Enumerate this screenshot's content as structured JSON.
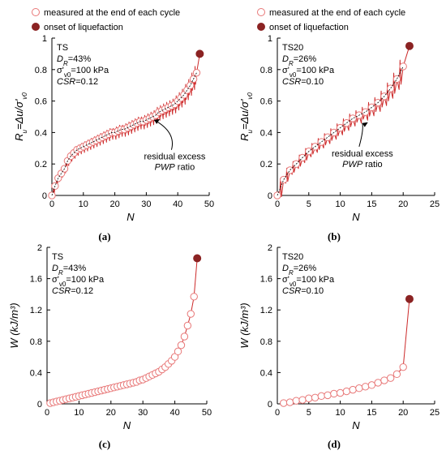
{
  "legend": {
    "measured": "measured at the end of each cycle",
    "onset": "onset of liquefaction",
    "measured_color": "#e87878",
    "onset_color": "#8b2323"
  },
  "chart_data": [
    {
      "id": "a",
      "type": "line",
      "panel_label": "(a)",
      "xlabel": "N",
      "ylabel": "R_u=Δu/σ'_v0",
      "xlim": [
        0,
        50
      ],
      "ylim": [
        0,
        1
      ],
      "xticks": [
        "0",
        "10",
        "20",
        "30",
        "40",
        "50"
      ],
      "yticks": [
        "0",
        "0.2",
        "0.4",
        "0.6",
        "0.8",
        "1"
      ],
      "info": [
        "TS",
        "D_R=43%",
        "σ'_v0=100 kPa",
        "CSR=0.12"
      ],
      "annotation": [
        "residual excess",
        "PWP ratio"
      ],
      "series": [
        {
          "role": "residual",
          "x": [
            0,
            1,
            2,
            3,
            4,
            5,
            6,
            7,
            8,
            9,
            10,
            11,
            12,
            13,
            14,
            15,
            16,
            17,
            18,
            19,
            20,
            21,
            22,
            23,
            24,
            25,
            26,
            27,
            28,
            29,
            30,
            31,
            32,
            33,
            34,
            35,
            36,
            37,
            38,
            39,
            40,
            41,
            42,
            43,
            44,
            45,
            46
          ],
          "y": [
            0.0,
            0.06,
            0.11,
            0.14,
            0.17,
            0.22,
            0.25,
            0.27,
            0.29,
            0.3,
            0.31,
            0.32,
            0.33,
            0.34,
            0.35,
            0.36,
            0.37,
            0.38,
            0.39,
            0.4,
            0.4,
            0.41,
            0.42,
            0.42,
            0.43,
            0.44,
            0.45,
            0.46,
            0.47,
            0.47,
            0.48,
            0.49,
            0.5,
            0.51,
            0.53,
            0.54,
            0.55,
            0.56,
            0.57,
            0.58,
            0.6,
            0.62,
            0.64,
            0.67,
            0.7,
            0.74,
            0.78
          ]
        }
      ],
      "onset": {
        "x": 47,
        "y": 0.9
      }
    },
    {
      "id": "b",
      "type": "line",
      "panel_label": "(b)",
      "xlabel": "N",
      "ylabel": "R_u=Δu/σ'_v0",
      "xlim": [
        0,
        25
      ],
      "ylim": [
        0,
        1
      ],
      "xticks": [
        "0",
        "5",
        "10",
        "15",
        "20",
        "25"
      ],
      "yticks": [
        "0",
        "0.2",
        "0.4",
        "0.6",
        "0.8",
        "1"
      ],
      "info": [
        "TS20",
        "D_R=26%",
        "σ'_v0=100 kPa",
        "CSR=0.10"
      ],
      "annotation": [
        "residual excess",
        "PWP ratio"
      ],
      "series": [
        {
          "role": "residual",
          "x": [
            0,
            1,
            2,
            3,
            4,
            5,
            6,
            7,
            8,
            9,
            10,
            11,
            12,
            13,
            14,
            15,
            16,
            17,
            18,
            19,
            20
          ],
          "y": [
            0.0,
            0.1,
            0.16,
            0.2,
            0.24,
            0.28,
            0.31,
            0.34,
            0.37,
            0.4,
            0.43,
            0.46,
            0.49,
            0.51,
            0.53,
            0.56,
            0.59,
            0.63,
            0.68,
            0.74,
            0.82
          ]
        }
      ],
      "onset": {
        "x": 21,
        "y": 0.95
      }
    },
    {
      "id": "c",
      "type": "line",
      "panel_label": "(c)",
      "xlabel": "N",
      "ylabel": "W (kJ/m³)",
      "xlim": [
        0,
        50
      ],
      "ylim": [
        0,
        2
      ],
      "xticks": [
        "0",
        "10",
        "20",
        "30",
        "40",
        "50"
      ],
      "yticks": [
        "0",
        "0.4",
        "0.8",
        "1.2",
        "1.6",
        "2"
      ],
      "info": [
        "TS",
        "D_R=43%",
        "σ'_v0=100 kPa",
        "CSR=0.12"
      ],
      "series": [
        {
          "role": "cumulative",
          "x": [
            1,
            2,
            3,
            4,
            5,
            6,
            7,
            8,
            9,
            10,
            11,
            12,
            13,
            14,
            15,
            16,
            17,
            18,
            19,
            20,
            21,
            22,
            23,
            24,
            25,
            26,
            27,
            28,
            29,
            30,
            31,
            32,
            33,
            34,
            35,
            36,
            37,
            38,
            39,
            40,
            41,
            42,
            43,
            44,
            45,
            46
          ],
          "y": [
            0.01,
            0.02,
            0.03,
            0.04,
            0.05,
            0.06,
            0.07,
            0.08,
            0.09,
            0.1,
            0.11,
            0.12,
            0.13,
            0.14,
            0.15,
            0.16,
            0.17,
            0.18,
            0.19,
            0.2,
            0.21,
            0.22,
            0.23,
            0.24,
            0.25,
            0.26,
            0.27,
            0.28,
            0.3,
            0.31,
            0.33,
            0.35,
            0.37,
            0.39,
            0.41,
            0.44,
            0.47,
            0.51,
            0.55,
            0.6,
            0.67,
            0.75,
            0.86,
            1.0,
            1.15,
            1.37
          ]
        }
      ],
      "onset": {
        "x": 47,
        "y": 1.86
      }
    },
    {
      "id": "d",
      "type": "line",
      "panel_label": "(d)",
      "xlabel": "N",
      "ylabel": "W (kJ/m³)",
      "xlim": [
        0,
        25
      ],
      "ylim": [
        0,
        2
      ],
      "xticks": [
        "0",
        "5",
        "10",
        "15",
        "20",
        "25"
      ],
      "yticks": [
        "0",
        "0.4",
        "0.8",
        "1.2",
        "1.6",
        "2"
      ],
      "info": [
        "TS20",
        "D_R=26%",
        "σ'_v0=100 kPa",
        "CSR=0.10"
      ],
      "series": [
        {
          "role": "cumulative",
          "x": [
            1,
            2,
            3,
            4,
            5,
            6,
            7,
            8,
            9,
            10,
            11,
            12,
            13,
            14,
            15,
            16,
            17,
            18,
            19,
            20
          ],
          "y": [
            0.01,
            0.02,
            0.04,
            0.05,
            0.07,
            0.08,
            0.1,
            0.11,
            0.13,
            0.14,
            0.16,
            0.18,
            0.2,
            0.22,
            0.24,
            0.27,
            0.3,
            0.33,
            0.38,
            0.47
          ]
        }
      ],
      "onset": {
        "x": 21,
        "y": 1.34
      }
    }
  ]
}
